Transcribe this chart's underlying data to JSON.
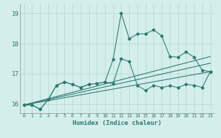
{
  "title": "",
  "xlabel": "Humidex (Indice chaleur)",
  "ylabel": "",
  "bg_color": "#d4eeeb",
  "grid_color": "#b8ddd9",
  "line_color": "#2d7a6e",
  "xlim": [
    -0.5,
    23.5
  ],
  "ylim": [
    15.7,
    19.3
  ],
  "yticks": [
    16,
    17,
    18,
    19
  ],
  "xticks": [
    0,
    1,
    2,
    3,
    4,
    5,
    6,
    7,
    8,
    9,
    10,
    11,
    12,
    13,
    14,
    15,
    16,
    17,
    18,
    19,
    20,
    21,
    22,
    23
  ],
  "series1_x": [
    0,
    1,
    2,
    3,
    4,
    5,
    6,
    7,
    8,
    9,
    10,
    11,
    12,
    13,
    14,
    15,
    16,
    17,
    18,
    19,
    20,
    21,
    22,
    23
  ],
  "series1_y": [
    15.97,
    15.97,
    15.83,
    16.15,
    16.62,
    16.73,
    16.65,
    16.55,
    16.65,
    16.68,
    16.73,
    16.67,
    17.5,
    17.4,
    16.62,
    16.45,
    16.62,
    16.55,
    16.6,
    16.55,
    16.65,
    16.62,
    16.55,
    17.07
  ],
  "series2_x": [
    0,
    1,
    2,
    3,
    4,
    5,
    6,
    7,
    8,
    9,
    10,
    11,
    12,
    13,
    14,
    15,
    16,
    17,
    18,
    19,
    20,
    21,
    22,
    23
  ],
  "series2_y": [
    15.97,
    15.97,
    15.83,
    16.15,
    16.62,
    16.73,
    16.65,
    16.55,
    16.65,
    16.68,
    16.73,
    17.47,
    19.0,
    18.15,
    18.32,
    18.32,
    18.45,
    18.25,
    17.57,
    17.55,
    17.72,
    17.55,
    17.12,
    17.07
  ],
  "trend1_x": [
    0,
    23
  ],
  "trend1_y": [
    15.97,
    17.07
  ],
  "trend2_x": [
    0,
    23
  ],
  "trend2_y": [
    15.97,
    17.57
  ],
  "trend3_x": [
    0,
    23
  ],
  "trend3_y": [
    15.97,
    17.35
  ]
}
